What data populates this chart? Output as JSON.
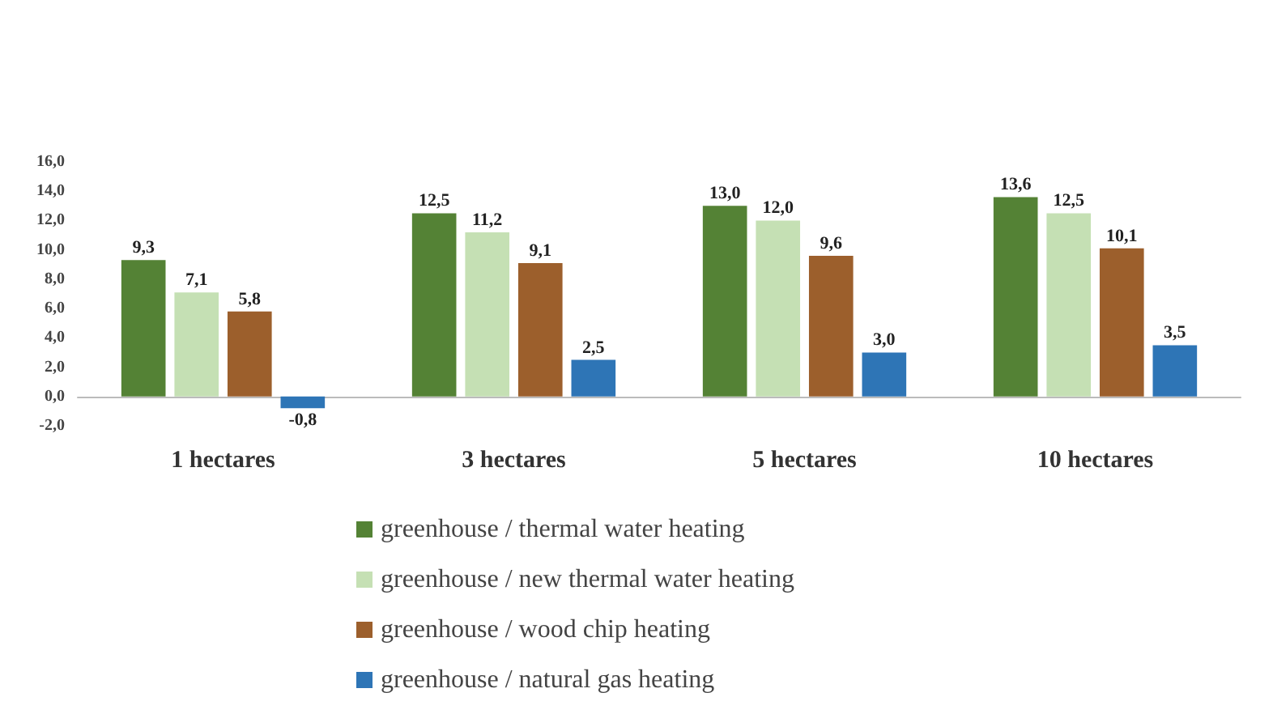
{
  "chart_data": {
    "type": "bar",
    "categories": [
      "1 hectares",
      "3 hectares",
      "5 hectares",
      "10 hectares"
    ],
    "series": [
      {
        "name": "greenhouse / thermal water heating",
        "color": "#548235",
        "values": [
          9.3,
          12.5,
          13.0,
          13.6
        ],
        "value_labels": [
          "9,3",
          "12,5",
          "13,0",
          "13,6"
        ]
      },
      {
        "name": "greenhouse / new thermal water heating",
        "color": "#c5e0b4",
        "values": [
          7.1,
          11.2,
          12.0,
          12.5
        ],
        "value_labels": [
          "7,1",
          "11,2",
          "12,0",
          "12,5"
        ]
      },
      {
        "name": "greenhouse / wood chip heating",
        "color": "#9c5f2c",
        "values": [
          5.8,
          9.1,
          9.6,
          10.1
        ],
        "value_labels": [
          "5,8",
          "9,1",
          "9,6",
          "10,1"
        ]
      },
      {
        "name": "greenhouse / natural gas heating",
        "color": "#2e75b6",
        "values": [
          -0.8,
          2.5,
          3.0,
          3.5
        ],
        "value_labels": [
          "-0,8",
          "2,5",
          "3,0",
          "3,5"
        ]
      }
    ],
    "ylim": [
      -2,
      16
    ],
    "yticks": [
      {
        "value": -2,
        "label": "-2,0"
      },
      {
        "value": 0,
        "label": "0,0"
      },
      {
        "value": 2,
        "label": "2,0"
      },
      {
        "value": 4,
        "label": "4,0"
      },
      {
        "value": 6,
        "label": "6,0"
      },
      {
        "value": 8,
        "label": "8,0"
      },
      {
        "value": 10,
        "label": "10,0"
      },
      {
        "value": 12,
        "label": "12,0"
      },
      {
        "value": 14,
        "label": "14,0"
      },
      {
        "value": 16,
        "label": "16,0"
      }
    ],
    "grid": false,
    "legend": "bottom"
  }
}
